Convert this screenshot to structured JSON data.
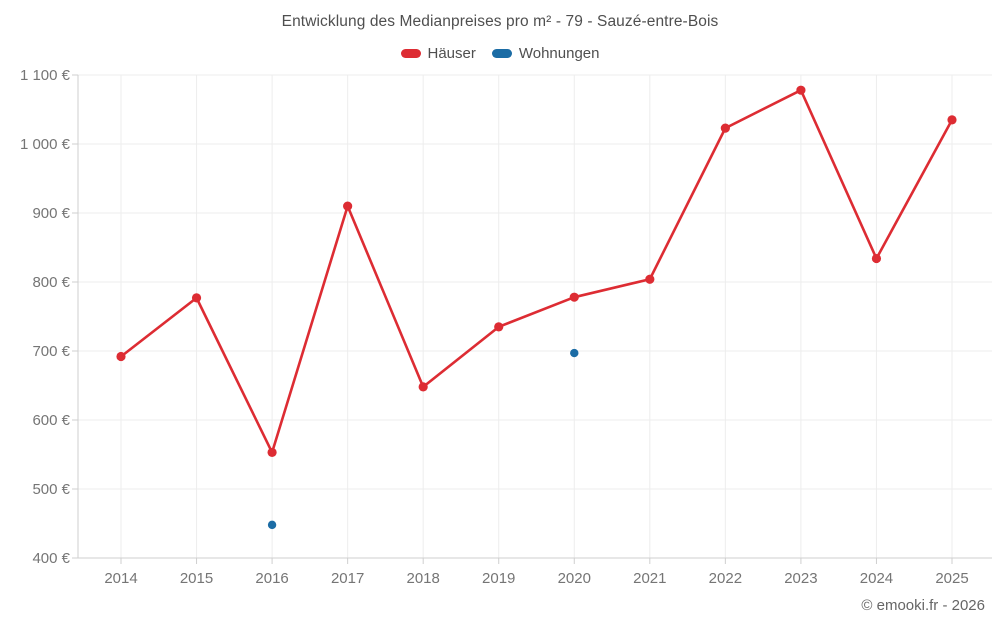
{
  "chart_data": {
    "type": "line",
    "title": "Entwicklung des Medianpreises pro m² - 79 - Sauzé-entre-Bois",
    "categories": [
      "2014",
      "2015",
      "2016",
      "2017",
      "2018",
      "2019",
      "2020",
      "2021",
      "2022",
      "2023",
      "2024",
      "2025"
    ],
    "series": [
      {
        "name": "Häuser",
        "color": "#dd2c33",
        "style": "line-with-markers",
        "values": [
          692,
          777,
          553,
          910,
          648,
          735,
          778,
          804,
          1023,
          1078,
          834,
          1035
        ]
      },
      {
        "name": "Wohnungen",
        "color": "#1b6ca5",
        "style": "markers-only",
        "values": [
          null,
          null,
          448,
          null,
          null,
          null,
          697,
          null,
          null,
          null,
          null,
          null
        ]
      }
    ],
    "xlabel": "",
    "ylabel": "",
    "ylim": [
      400,
      1100
    ],
    "y_tick_step": 100,
    "y_tick_labels": [
      "400 €",
      "500 €",
      "600 €",
      "700 €",
      "800 €",
      "900 €",
      "1 000 €",
      "1 100 €"
    ],
    "grid": "on",
    "legend_position": "top"
  },
  "footer": {
    "credit": "© emooki.fr - 2026"
  },
  "colors": {
    "gridline": "#ededed",
    "axis": "#cfcfcf",
    "tick_label": "#757575",
    "title_text": "#4f4f4f"
  }
}
